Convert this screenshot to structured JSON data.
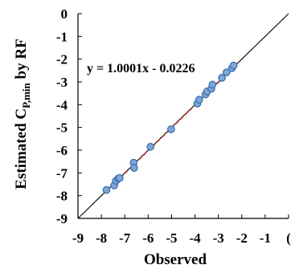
{
  "chart_data": {
    "type": "scatter",
    "xlabel": "Observed",
    "ylabel": {
      "main": "Estimated C",
      "subscript": "P,min",
      "suffix": " by RF"
    },
    "xlim": [
      -9,
      0
    ],
    "ylim": [
      -9,
      0
    ],
    "x_ticks": [
      -9,
      -8,
      -7,
      -6,
      -5,
      -4,
      -3,
      -2,
      -1,
      0
    ],
    "x_tick_labels": [
      "-9",
      "-8",
      "-7",
      "-6",
      "-5",
      "-4",
      "-3",
      "-2",
      "-1",
      "("
    ],
    "y_ticks": [
      0,
      -1,
      -2,
      -3,
      -4,
      -5,
      -6,
      -7,
      -8,
      -9
    ],
    "y_tick_labels": [
      "0",
      "-1",
      "-2",
      "-3",
      "-4",
      "-5",
      "-6",
      "-7",
      "-8",
      "-9"
    ],
    "annotation": "y = 1.0001x - 0.0226",
    "reference_line": {
      "slope": 1,
      "intercept": 0,
      "color": "#000000"
    },
    "fit_line": {
      "slope": 1.0001,
      "intercept": -0.0226,
      "color": "#c0392b",
      "style": "dashed"
    },
    "marker": {
      "fill": "#7fa7d6",
      "stroke": "#3b6fb0"
    },
    "grid": false,
    "points": [
      {
        "x": -7.78,
        "y": -7.75
      },
      {
        "x": -7.45,
        "y": -7.55
      },
      {
        "x": -7.38,
        "y": -7.35
      },
      {
        "x": -7.28,
        "y": -7.25
      },
      {
        "x": -7.22,
        "y": -7.22
      },
      {
        "x": -6.62,
        "y": -6.55
      },
      {
        "x": -6.6,
        "y": -6.78
      },
      {
        "x": -5.9,
        "y": -5.85
      },
      {
        "x": -5.02,
        "y": -5.08
      },
      {
        "x": -3.9,
        "y": -3.95
      },
      {
        "x": -3.82,
        "y": -3.78
      },
      {
        "x": -3.55,
        "y": -3.55
      },
      {
        "x": -3.48,
        "y": -3.42
      },
      {
        "x": -3.3,
        "y": -3.3
      },
      {
        "x": -3.25,
        "y": -3.12
      },
      {
        "x": -2.85,
        "y": -2.82
      },
      {
        "x": -2.65,
        "y": -2.58
      },
      {
        "x": -2.42,
        "y": -2.4
      },
      {
        "x": -2.35,
        "y": -2.28
      }
    ]
  }
}
